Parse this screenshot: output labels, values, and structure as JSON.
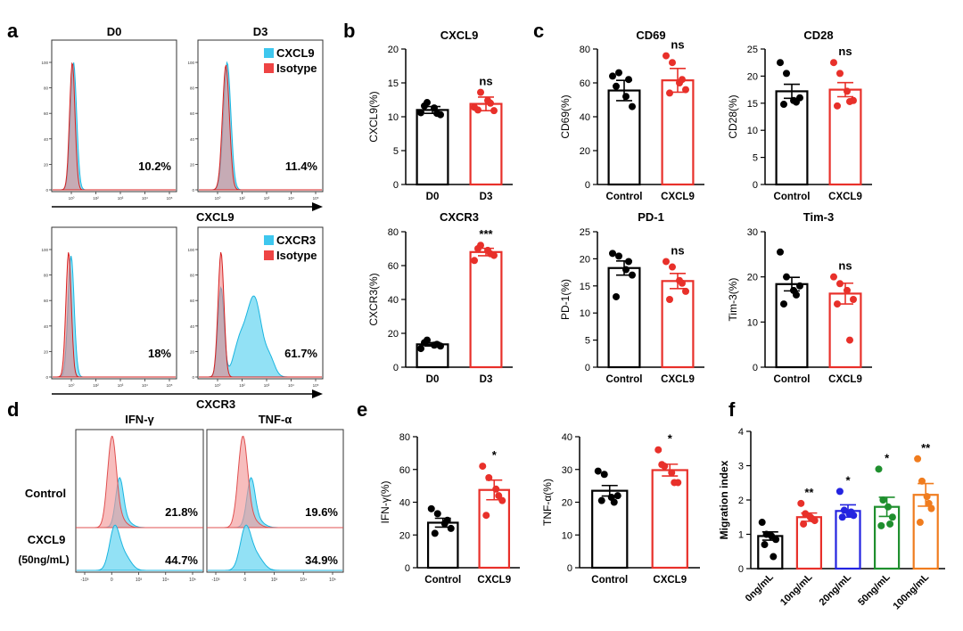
{
  "panel_letters": [
    "a",
    "b",
    "c",
    "d",
    "e",
    "f"
  ],
  "chart_data": [
    {
      "id": "a",
      "type": "histogram",
      "columns": [
        "D0",
        "D3"
      ],
      "rows": [
        {
          "legend": [
            {
              "label": "CXCL9",
              "color": "#3ec7ee"
            },
            {
              "label": "Isotype",
              "color": "#ee4444"
            }
          ],
          "xlabel": "CXCL9",
          "percent": [
            "10.2%",
            "11.4%"
          ]
        },
        {
          "legend": [
            {
              "label": "CXCR3",
              "color": "#3ec7ee"
            },
            {
              "label": "Isotype",
              "color": "#ee4444"
            }
          ],
          "xlabel": "CXCR3",
          "percent": [
            "18%",
            "61.7%"
          ]
        }
      ],
      "y_ticks": [
        "0",
        "20",
        "40",
        "60",
        "80",
        "100"
      ],
      "x_ticks": [
        "10⁰",
        "10²",
        "10³",
        "10⁴",
        "10⁵"
      ]
    },
    {
      "id": "b1",
      "type": "bar",
      "title": "CXCL9",
      "ylabel": "CXCL9(%)",
      "ylim": [
        0,
        20
      ],
      "yticks": [
        0,
        5,
        10,
        15,
        20
      ],
      "categories": [
        "D0",
        "D3"
      ],
      "means": [
        11.0,
        11.9
      ],
      "sem": [
        0.5,
        1.0
      ],
      "points": [
        [
          10.6,
          12.1,
          11.3,
          10.3,
          11.6,
          10.5
        ],
        [
          11.4,
          13.6,
          12.4,
          10.9,
          11.0,
          12.0
        ]
      ],
      "colors": [
        "#000000",
        "#e8302a"
      ],
      "significance": [
        "",
        "ns"
      ]
    },
    {
      "id": "b2",
      "type": "bar",
      "title": "CXCR3",
      "ylabel": "CXCR3(%)",
      "ylim": [
        0,
        80
      ],
      "yticks": [
        0,
        20,
        40,
        60,
        80
      ],
      "categories": [
        "D0",
        "D3"
      ],
      "means": [
        13.5,
        68.0
      ],
      "sem": [
        1.0,
        2.2
      ],
      "points": [
        [
          11.0,
          16.0,
          13.0,
          12.5,
          14.5,
          13.5
        ],
        [
          63.0,
          72.0,
          69.0,
          66.0,
          70.0,
          67.0
        ]
      ],
      "colors": [
        "#000000",
        "#e8302a"
      ],
      "significance": [
        "",
        "***"
      ]
    },
    {
      "id": "c1",
      "type": "bar",
      "title": "CD69",
      "ylabel": "CD69(%)",
      "ylim": [
        0,
        80
      ],
      "yticks": [
        0,
        20,
        40,
        60,
        80
      ],
      "categories": [
        "Control",
        "CXCL9"
      ],
      "means": [
        55.5,
        61.5
      ],
      "sem": [
        6.0,
        7.0
      ],
      "points": [
        [
          64.0,
          66.0,
          52.0,
          46.0,
          58.0,
          62.0
        ],
        [
          76.0,
          72.0,
          60.0,
          56.0,
          54.0,
          62.0
        ]
      ],
      "colors": [
        "#000000",
        "#e8302a"
      ],
      "significance": [
        "",
        "ns"
      ]
    },
    {
      "id": "c2",
      "type": "bar",
      "title": "CD28",
      "ylabel": "CD28(%)",
      "ylim": [
        0,
        25
      ],
      "yticks": [
        0,
        5,
        10,
        15,
        20,
        25
      ],
      "categories": [
        "Control",
        "CXCL9"
      ],
      "means": [
        17.2,
        17.5
      ],
      "sem": [
        1.3,
        1.3
      ],
      "points": [
        [
          22.5,
          20.5,
          15.5,
          16.0,
          14.8,
          15.2
        ],
        [
          22.5,
          20.5,
          17.2,
          15.5,
          14.5,
          15.3
        ]
      ],
      "colors": [
        "#000000",
        "#e8302a"
      ],
      "significance": [
        "",
        "ns"
      ]
    },
    {
      "id": "c3",
      "type": "bar",
      "title": "PD-1",
      "ylabel": "PD-1(%)",
      "ylim": [
        0,
        25
      ],
      "yticks": [
        0,
        5,
        10,
        15,
        20,
        25
      ],
      "categories": [
        "Control",
        "CXCL9"
      ],
      "means": [
        18.3,
        15.9
      ],
      "sem": [
        1.3,
        1.4
      ],
      "points": [
        [
          21.0,
          20.5,
          18.0,
          17.0,
          13.0,
          19.5
        ],
        [
          19.5,
          18.5,
          16.0,
          14.0,
          12.5,
          15.5
        ]
      ],
      "colors": [
        "#000000",
        "#e8302a"
      ],
      "significance": [
        "",
        "ns"
      ]
    },
    {
      "id": "c4",
      "type": "bar",
      "title": "Tim-3",
      "ylabel": "Tim-3(%)",
      "ylim": [
        0,
        30
      ],
      "yticks": [
        0,
        10,
        20,
        30
      ],
      "categories": [
        "Control",
        "CXCL9"
      ],
      "means": [
        18.4,
        16.3
      ],
      "sem": [
        1.5,
        2.3
      ],
      "points": [
        [
          25.5,
          20.0,
          17.0,
          18.0,
          14.0,
          16.0
        ],
        [
          20.0,
          18.5,
          17.0,
          15.0,
          14.0,
          6.0
        ]
      ],
      "colors": [
        "#000000",
        "#e8302a"
      ],
      "significance": [
        "",
        "ns"
      ]
    },
    {
      "id": "d",
      "type": "histogram",
      "columns": [
        "IFN-γ",
        "TNF-α"
      ],
      "row_labels": [
        "Control",
        "CXCL9",
        "(50ng/mL)"
      ],
      "percent": [
        [
          "21.8%",
          "19.6%"
        ],
        [
          "44.7%",
          "34.9%"
        ]
      ],
      "x_ticks": [
        "-10³",
        "0",
        "10³",
        "10⁴",
        "10⁵"
      ]
    },
    {
      "id": "e1",
      "type": "bar",
      "ylabel": "IFN-γ(%)",
      "ylim": [
        0,
        80
      ],
      "yticks": [
        0,
        20,
        40,
        60,
        80
      ],
      "categories": [
        "Control",
        "CXCL9"
      ],
      "means": [
        27.5,
        47.5
      ],
      "sem": [
        2.7,
        6.0
      ],
      "points": [
        [
          36.0,
          33.0,
          27.0,
          24.0,
          21.0,
          29.0
        ],
        [
          62.0,
          55.0,
          48.0,
          41.0,
          32.0,
          44.0
        ]
      ],
      "colors": [
        "#000000",
        "#e8302a"
      ],
      "significance": [
        "",
        "*"
      ]
    },
    {
      "id": "e2",
      "type": "bar",
      "ylabel": "TNF-α(%)",
      "ylim": [
        0,
        40
      ],
      "yticks": [
        0,
        10,
        20,
        30,
        40
      ],
      "categories": [
        "Control",
        "CXCL9"
      ],
      "means": [
        23.5,
        29.8
      ],
      "sem": [
        1.6,
        1.8
      ],
      "points": [
        [
          29.5,
          28.5,
          21.5,
          22.0,
          20.5,
          20.0
        ],
        [
          36.0,
          31.0,
          29.0,
          26.0,
          31.5,
          26.0
        ]
      ],
      "colors": [
        "#000000",
        "#e8302a"
      ],
      "significance": [
        "",
        "*"
      ]
    },
    {
      "id": "f",
      "type": "bar",
      "ylabel": "Migration index",
      "ylim": [
        0,
        4
      ],
      "yticks": [
        0,
        1,
        2,
        3,
        4
      ],
      "categories": [
        "0ng/mL",
        "10ng/mL",
        "20ng/mL",
        "50ng/mL",
        "100ng/mL"
      ],
      "means": [
        0.95,
        1.5,
        1.68,
        1.8,
        2.15
      ],
      "sem": [
        0.12,
        0.12,
        0.18,
        0.28,
        0.33
      ],
      "points": [
        [
          1.35,
          1.0,
          0.95,
          0.85,
          0.7,
          0.35
        ],
        [
          1.9,
          1.6,
          1.5,
          1.4,
          1.3,
          1.45
        ],
        [
          2.25,
          1.7,
          1.6,
          1.55,
          1.5,
          1.65
        ],
        [
          2.9,
          2.0,
          1.8,
          1.5,
          1.25,
          1.3
        ],
        [
          3.2,
          2.55,
          2.1,
          1.75,
          1.35,
          1.9
        ]
      ],
      "colors": [
        "#000000",
        "#e8302a",
        "#2424e0",
        "#1f8f2e",
        "#f07c1e"
      ],
      "significance": [
        "",
        "**",
        "*",
        "*",
        "**"
      ]
    }
  ]
}
